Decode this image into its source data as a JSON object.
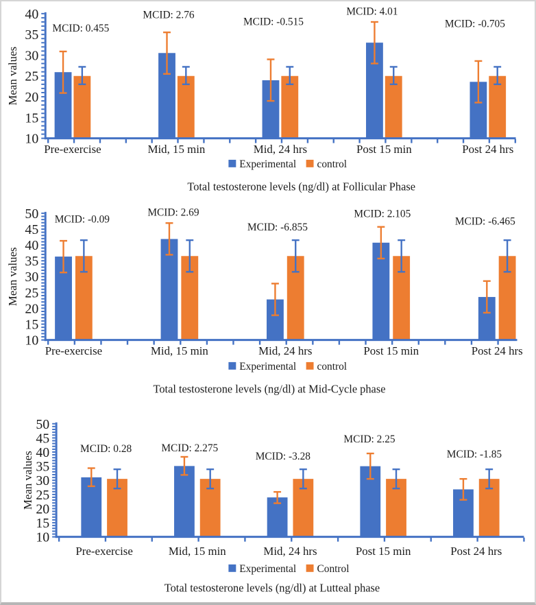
{
  "figure": {
    "background": "#ffffff",
    "border_color": "#d5d5d5",
    "axis_color": "#4472C4",
    "text_color": "#1c1c1c"
  },
  "chart_data": [
    {
      "type": "bar",
      "title": "Total testosterone levels (ng/dl) at Follicular Phase",
      "ylabel": "Mean values",
      "xlabel": "",
      "ylim": [
        10,
        40
      ],
      "yticks": [
        40,
        35,
        30,
        25,
        20,
        15,
        10
      ],
      "grid": false,
      "legend_position": "bottom",
      "categories": [
        "Pre-exercise",
        "Mid, 15 min",
        "Mid, 24 hrs",
        "Post 15 min",
        "Post 24 hrs"
      ],
      "series": [
        {
          "name": "Experimental",
          "color": "#4472C4",
          "values": [
            25.91,
            30.52,
            23.97,
            33.02,
            23.59
          ],
          "error_color": "#ED7D31",
          "error_low": [
            20.9,
            25.5,
            19.0,
            28.0,
            18.6
          ],
          "error_high": [
            30.9,
            35.5,
            29.0,
            38.0,
            28.6
          ]
        },
        {
          "name": "control",
          "color": "#ED7D31",
          "values": [
            25.0,
            25.0,
            25.0,
            25.0,
            25.0
          ],
          "error_color": "#4472C4",
          "error_low": [
            23.0,
            23.0,
            23.0,
            23.0,
            23.0
          ],
          "error_high": [
            27.2,
            27.2,
            27.2,
            27.2,
            27.2
          ]
        }
      ],
      "annotations": [
        "MCID: 0.455",
        "MCID: 2.76",
        "MCID: -0.515",
        "MCID: 4.01",
        "MCID: -0.705"
      ],
      "legend": [
        "Experimental",
        "control"
      ]
    },
    {
      "type": "bar",
      "title": "Total testosterone levels (ng/dl) at Mid-Cycle phase",
      "ylabel": "Mean values",
      "xlabel": "",
      "ylim": [
        10,
        50
      ],
      "yticks": [
        50,
        45,
        40,
        35,
        30,
        25,
        20,
        15,
        10
      ],
      "grid": false,
      "legend_position": "bottom",
      "categories": [
        "Pre-exercise",
        "Mid, 15 min",
        "Mid, 24 hrs",
        "Post 15 min",
        "Post 24 hrs"
      ],
      "series": [
        {
          "name": "Experimental",
          "color": "#4472C4",
          "values": [
            36.32,
            41.88,
            22.79,
            40.71,
            23.57
          ],
          "error_color": "#ED7D31",
          "error_low": [
            31.3,
            36.9,
            17.8,
            35.7,
            18.6
          ],
          "error_high": [
            41.3,
            46.9,
            27.8,
            45.7,
            28.6
          ]
        },
        {
          "name": "control",
          "color": "#ED7D31",
          "values": [
            36.5,
            36.5,
            36.5,
            36.5,
            36.5
          ],
          "error_color": "#4472C4",
          "error_low": [
            31.5,
            31.5,
            31.5,
            31.5,
            31.5
          ],
          "error_high": [
            41.5,
            41.5,
            41.5,
            41.5,
            41.5
          ]
        }
      ],
      "annotations": [
        "MCID: -0.09",
        "MCID: 2.69",
        "MCID: -6.855",
        "MCID: 2.105",
        "MCID: -6.465"
      ],
      "legend": [
        "Experimental",
        "control"
      ]
    },
    {
      "type": "bar",
      "title": "Total testosterone levels (ng/dl) at Lutteal phase",
      "ylabel": "Mean values",
      "xlabel": "",
      "ylim": [
        10,
        50
      ],
      "yticks": [
        50,
        45,
        40,
        35,
        30,
        25,
        20,
        15,
        10
      ],
      "grid": false,
      "legend_position": "bottom",
      "categories": [
        "Pre-exercise",
        "Mid, 15 min",
        "Mid, 24 hrs",
        "Post 15 min",
        "Post 24 hrs"
      ],
      "series": [
        {
          "name": "Experimental",
          "color": "#4472C4",
          "values": [
            31.06,
            35.05,
            23.94,
            35.0,
            26.8
          ],
          "error_color": "#ED7D31",
          "error_low": [
            27.9,
            31.9,
            21.9,
            30.5,
            23.1
          ],
          "error_high": [
            34.3,
            38.3,
            25.9,
            39.5,
            30.5
          ]
        },
        {
          "name": "Control",
          "color": "#ED7D31",
          "values": [
            30.5,
            30.5,
            30.5,
            30.5,
            30.5
          ],
          "error_color": "#4472C4",
          "error_low": [
            27.1,
            27.1,
            27.1,
            27.1,
            27.1
          ],
          "error_high": [
            33.9,
            33.9,
            33.9,
            33.9,
            33.9
          ]
        }
      ],
      "annotations": [
        "MCID: 0.28",
        "MCID: 2.275",
        "MCID: -3.28",
        "MCID: 2.25",
        "MCID: -1.85"
      ],
      "legend": [
        "Experimental",
        "Control"
      ]
    }
  ]
}
